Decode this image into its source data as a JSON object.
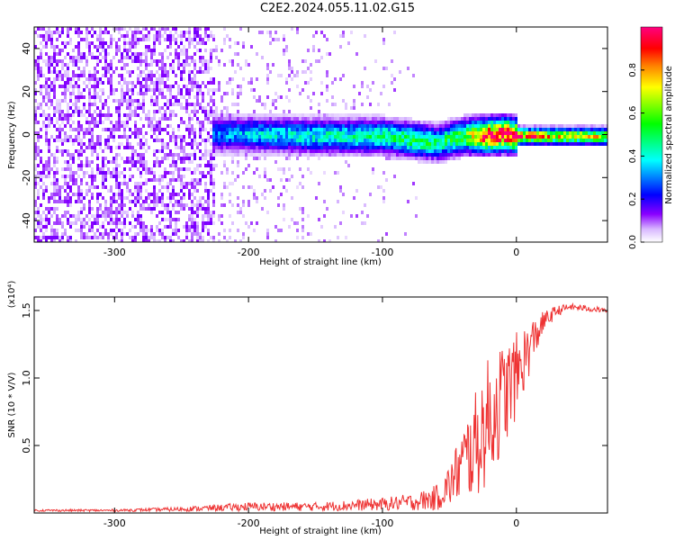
{
  "title": "C2E2.2024.055.11.02.G15",
  "chart_data": [
    {
      "type": "heatmap",
      "xlabel": "Height of straight line (km)",
      "ylabel": "Frequency (Hz)",
      "xlim": [
        -360,
        68
      ],
      "ylim": [
        -50,
        50
      ],
      "x_ticks": [
        -300,
        -200,
        -100,
        0
      ],
      "y_ticks": [
        -40,
        -20,
        0,
        20,
        40
      ],
      "colorbar": {
        "label": "Normalized spectral amplitude",
        "range": [
          0.0,
          1.0
        ],
        "ticks": [
          "0.0",
          "0.2",
          "0.4",
          "0.6",
          "0.8"
        ],
        "colors": [
          "#ffffff",
          "#cfa6ff",
          "#8a00ff",
          "#0000ff",
          "#00ffff",
          "#00ff00",
          "#ffff00",
          "#ff8000",
          "#ff0000",
          "#ff0080"
        ]
      },
      "band": {
        "description_points_x": [
          -225,
          -200,
          -150,
          -100,
          -75,
          -60,
          -40,
          -25,
          -10,
          0,
          30,
          68
        ],
        "center_hz": [
          1,
          1,
          0,
          0,
          -2,
          -3,
          0,
          0,
          1,
          0,
          0,
          0
        ],
        "peak_amplitude": [
          0.3,
          0.35,
          0.4,
          0.45,
          0.5,
          0.45,
          0.55,
          0.9,
          0.95,
          0.9,
          0.7,
          0.7
        ]
      },
      "noise_extent_x": [
        -360,
        -75
      ]
    },
    {
      "type": "line",
      "xlabel": "Height of straight line (km)",
      "ylabel": "SNR (10 * V/V)",
      "y_multiplier": "(x10⁴)",
      "xlim": [
        -360,
        68
      ],
      "ylim": [
        0,
        1.6
      ],
      "x_ticks": [
        -300,
        -200,
        -100,
        0
      ],
      "y_ticks": [
        0.5,
        1.0,
        1.5
      ],
      "color": "#ee3333",
      "series": [
        {
          "x": [
            -360,
            -300,
            -250,
            -200,
            -150,
            -100,
            -75,
            -60,
            -50,
            -40,
            -30,
            -20,
            -10,
            0,
            10,
            20,
            30,
            40,
            50,
            68
          ],
          "y": [
            0.02,
            0.02,
            0.03,
            0.05,
            0.05,
            0.07,
            0.09,
            0.12,
            0.22,
            0.4,
            0.55,
            0.75,
            0.9,
            1.05,
            1.25,
            1.42,
            1.5,
            1.53,
            1.52,
            1.5
          ],
          "spread": [
            0.01,
            0.01,
            0.02,
            0.04,
            0.04,
            0.06,
            0.08,
            0.12,
            0.2,
            0.35,
            0.5,
            0.6,
            0.5,
            0.4,
            0.25,
            0.1,
            0.05,
            0.03,
            0.03,
            0.02
          ]
        }
      ]
    }
  ]
}
